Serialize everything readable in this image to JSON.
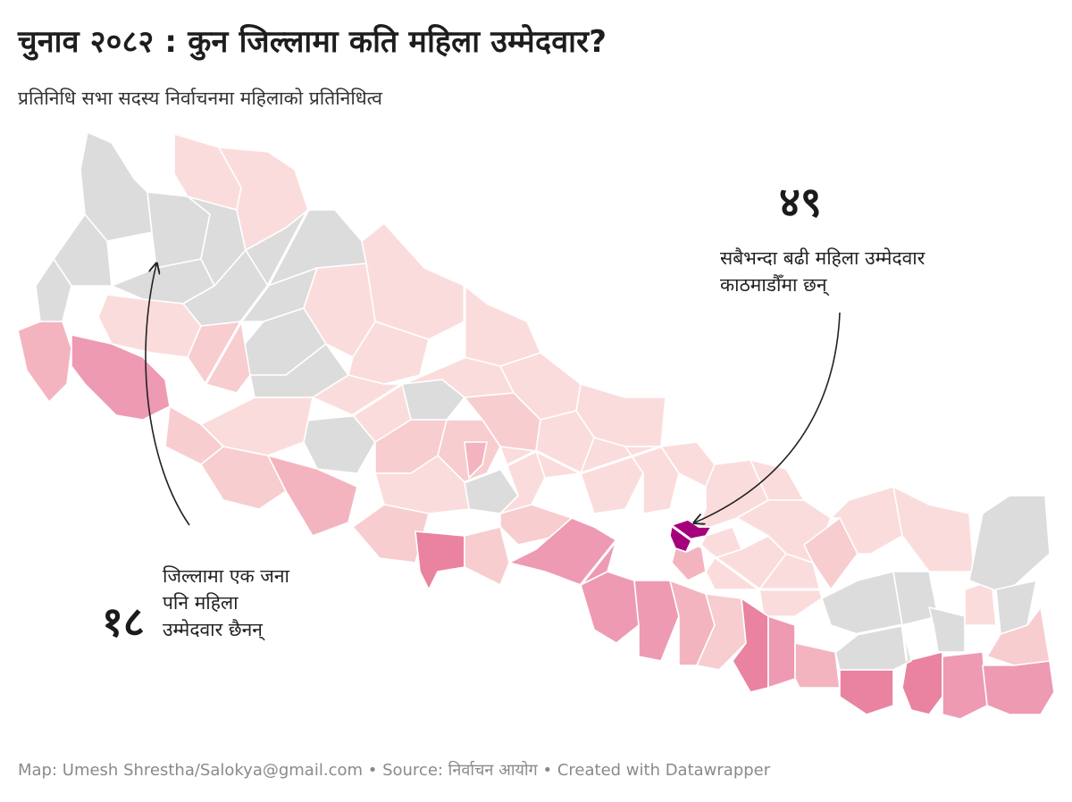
{
  "title": "चुनाव २०८२ : कुन जिल्लामा कति महिला उम्मेदवार?",
  "subtitle": "प्रतिनिधि सभा सदस्य निर्वाचनमा महिलाको प्रतिनिधित्व",
  "annotations": {
    "max": {
      "number": "४९",
      "text_line1": "सबैभन्दा बढी महिला उम्मेदवार",
      "text_line2": "काठमाडौँमा छन्"
    },
    "zero": {
      "number": "१८",
      "text_line1": "जिल्लामा एक जना",
      "text_line2": "पनि महिला",
      "text_line3": "उम्मेदवार छैनन्"
    }
  },
  "footer": "Map: Umesh Shrestha/Salokya@gmail.com • Source: निर्वाचन आयोग • Created with Datawrapper",
  "colors": {
    "none": "#dcdcdc",
    "lightest": "#fbdcdc",
    "light": "#f7cdd0",
    "medium": "#f3b4c0",
    "strong": "#ee9ab3",
    "stronger": "#e9839f",
    "max": "#a4007c"
  }
}
